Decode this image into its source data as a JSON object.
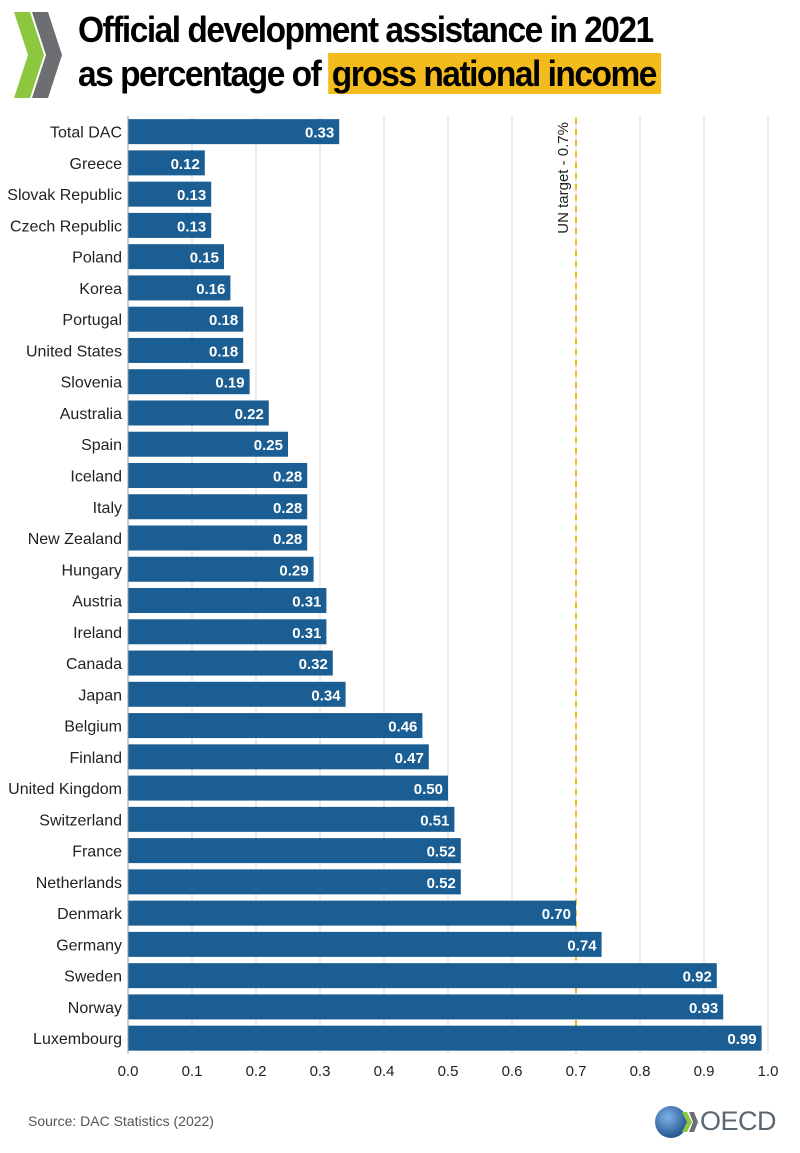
{
  "title": {
    "line1": "Official development assistance in 2021",
    "line2_prefix": "as percentage of ",
    "line2_highlight": "gross national income"
  },
  "colors": {
    "bar": "#1b5e93",
    "highlight": "#f4bb1d",
    "target_line": "#f4bb1d",
    "grid": "#d9d9d9"
  },
  "chart_data": {
    "type": "bar",
    "orientation": "horizontal",
    "title": "Official development assistance in 2021 as percentage of gross national income",
    "xlabel": "",
    "ylabel": "",
    "xlim": [
      0,
      1.0
    ],
    "xticks": [
      "0.0",
      "0.1",
      "0.2",
      "0.3",
      "0.4",
      "0.5",
      "0.6",
      "0.7",
      "0.8",
      "0.9",
      "1.0"
    ],
    "grid": true,
    "categories": [
      "Total DAC",
      "Greece",
      "Slovak Republic",
      "Czech Republic",
      "Poland",
      "Korea",
      "Portugal",
      "United States",
      "Slovenia",
      "Australia",
      "Spain",
      "Iceland",
      "Italy",
      "New Zealand",
      "Hungary",
      "Austria",
      "Ireland",
      "Canada",
      "Japan",
      "Belgium",
      "Finland",
      "United Kingdom",
      "Switzerland",
      "France",
      "Netherlands",
      "Denmark",
      "Germany",
      "Sweden",
      "Norway",
      "Luxembourg"
    ],
    "values": [
      0.33,
      0.12,
      0.13,
      0.13,
      0.15,
      0.16,
      0.18,
      0.18,
      0.19,
      0.22,
      0.25,
      0.28,
      0.28,
      0.28,
      0.29,
      0.31,
      0.31,
      0.32,
      0.34,
      0.46,
      0.47,
      0.5,
      0.51,
      0.52,
      0.52,
      0.7,
      0.74,
      0.92,
      0.93,
      0.99
    ],
    "value_labels": [
      "0.33",
      "0.12",
      "0.13",
      "0.13",
      "0.15",
      "0.16",
      "0.18",
      "0.18",
      "0.19",
      "0.22",
      "0.25",
      "0.28",
      "0.28",
      "0.28",
      "0.29",
      "0.31",
      "0.31",
      "0.32",
      "0.34",
      "0.46",
      "0.47",
      "0.50",
      "0.51",
      "0.52",
      "0.52",
      "0.70",
      "0.74",
      "0.92",
      "0.93",
      "0.99"
    ],
    "reference_line": {
      "value": 0.7,
      "label": "UN target - 0.7%"
    }
  },
  "source": "Source: DAC Statistics (2022)",
  "brand": {
    "name": "OECD",
    "logo_icon": "oecd-globe-icon"
  }
}
